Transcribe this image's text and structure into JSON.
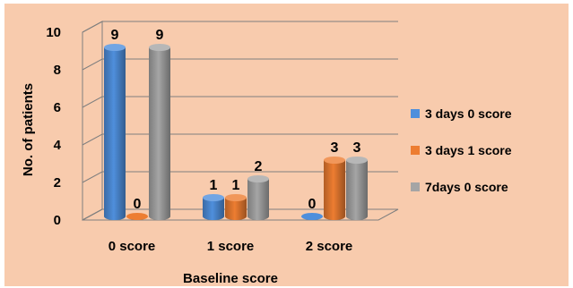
{
  "chart_data": {
    "type": "bar",
    "categories": [
      "0 score",
      "1 score",
      "2 score"
    ],
    "series": [
      {
        "name": "3 days 0 score",
        "values": [
          9,
          1,
          0
        ],
        "color": "#4f8fdc"
      },
      {
        "name": "3 days 1 score",
        "values": [
          0,
          1,
          3
        ],
        "color": "#ed7d31"
      },
      {
        "name": "7days 0 score",
        "values": [
          9,
          2,
          3
        ],
        "color": "#a5a5a5"
      }
    ],
    "yticks": [
      0,
      2,
      4,
      6,
      8,
      10
    ],
    "ylim": [
      0,
      10
    ],
    "xlabel": "Baseline score",
    "ylabel": "No. of patients",
    "legend_position": "right",
    "grid": true,
    "style": "3d-cylinder",
    "background": "#f8cbad"
  }
}
